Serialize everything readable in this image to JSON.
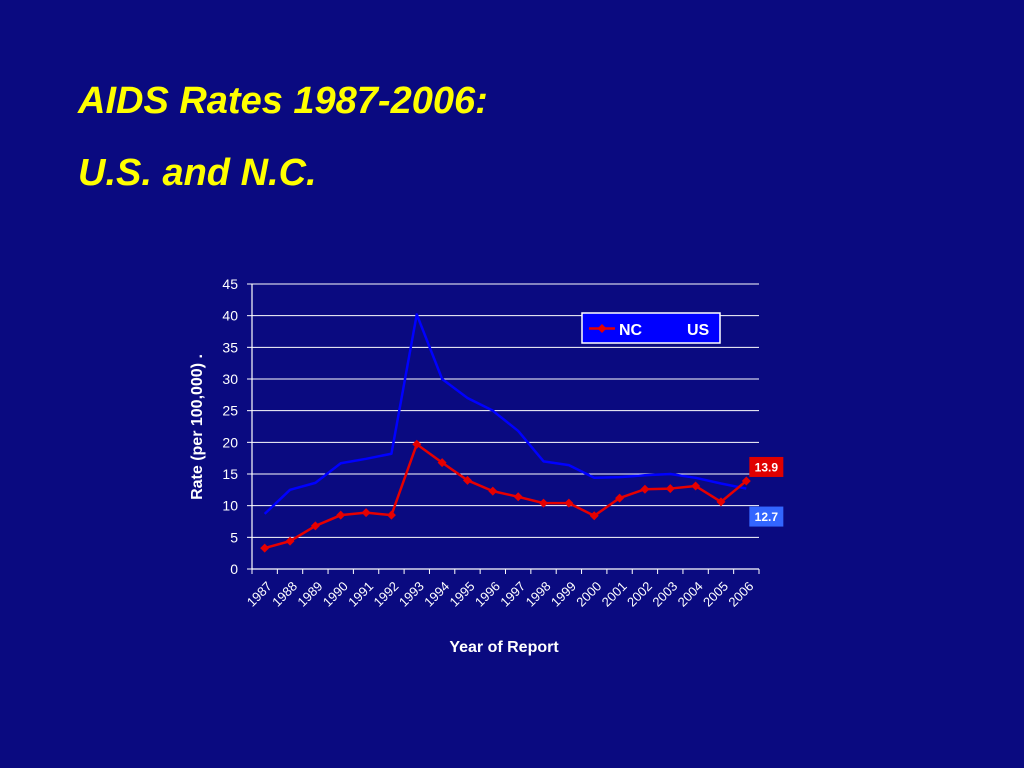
{
  "slide": {
    "title_line1": "AIDS Rates 1987-2006:",
    "title_line2": "U.S. and N.C."
  },
  "colors": {
    "background": "#0a0a80",
    "title": "#ffff00",
    "nc": "#e60000",
    "us": "#0000ff",
    "nc_label_bg": "#e00000",
    "us_label_bg": "#3366ff"
  },
  "chart_data": {
    "type": "line",
    "xlabel": "Year of Report",
    "ylabel": "Rate (per 100,000) .",
    "ylim": [
      0,
      45
    ],
    "yticks": [
      0,
      5,
      10,
      15,
      20,
      25,
      30,
      35,
      40,
      45
    ],
    "grid": true,
    "legend_position": "top-right",
    "categories": [
      "1987",
      "1988",
      "1989",
      "1990",
      "1991",
      "1992",
      "1993",
      "1994",
      "1995",
      "1996",
      "1997",
      "1998",
      "1999",
      "2000",
      "2001",
      "2002",
      "2003",
      "2004",
      "2005",
      "2006"
    ],
    "series": [
      {
        "name": "NC",
        "color": "#e60000",
        "marker": "diamond",
        "values": [
          3.3,
          4.4,
          6.8,
          8.5,
          8.9,
          8.5,
          19.7,
          16.8,
          14.0,
          12.3,
          11.4,
          10.4,
          10.4,
          8.4,
          11.2,
          12.6,
          12.7,
          13.1,
          10.6,
          13.9
        ]
      },
      {
        "name": "US",
        "color": "#0000ff",
        "marker": "none",
        "values": [
          8.7,
          12.5,
          13.6,
          16.7,
          17.4,
          18.2,
          40.2,
          30.0,
          27.0,
          25.0,
          21.8,
          17.0,
          16.4,
          14.4,
          14.5,
          14.8,
          15.0,
          14.4,
          13.5,
          12.7
        ]
      }
    ],
    "annotations": [
      {
        "series": "NC",
        "label": "13.9"
      },
      {
        "series": "US",
        "label": "12.7"
      }
    ]
  }
}
